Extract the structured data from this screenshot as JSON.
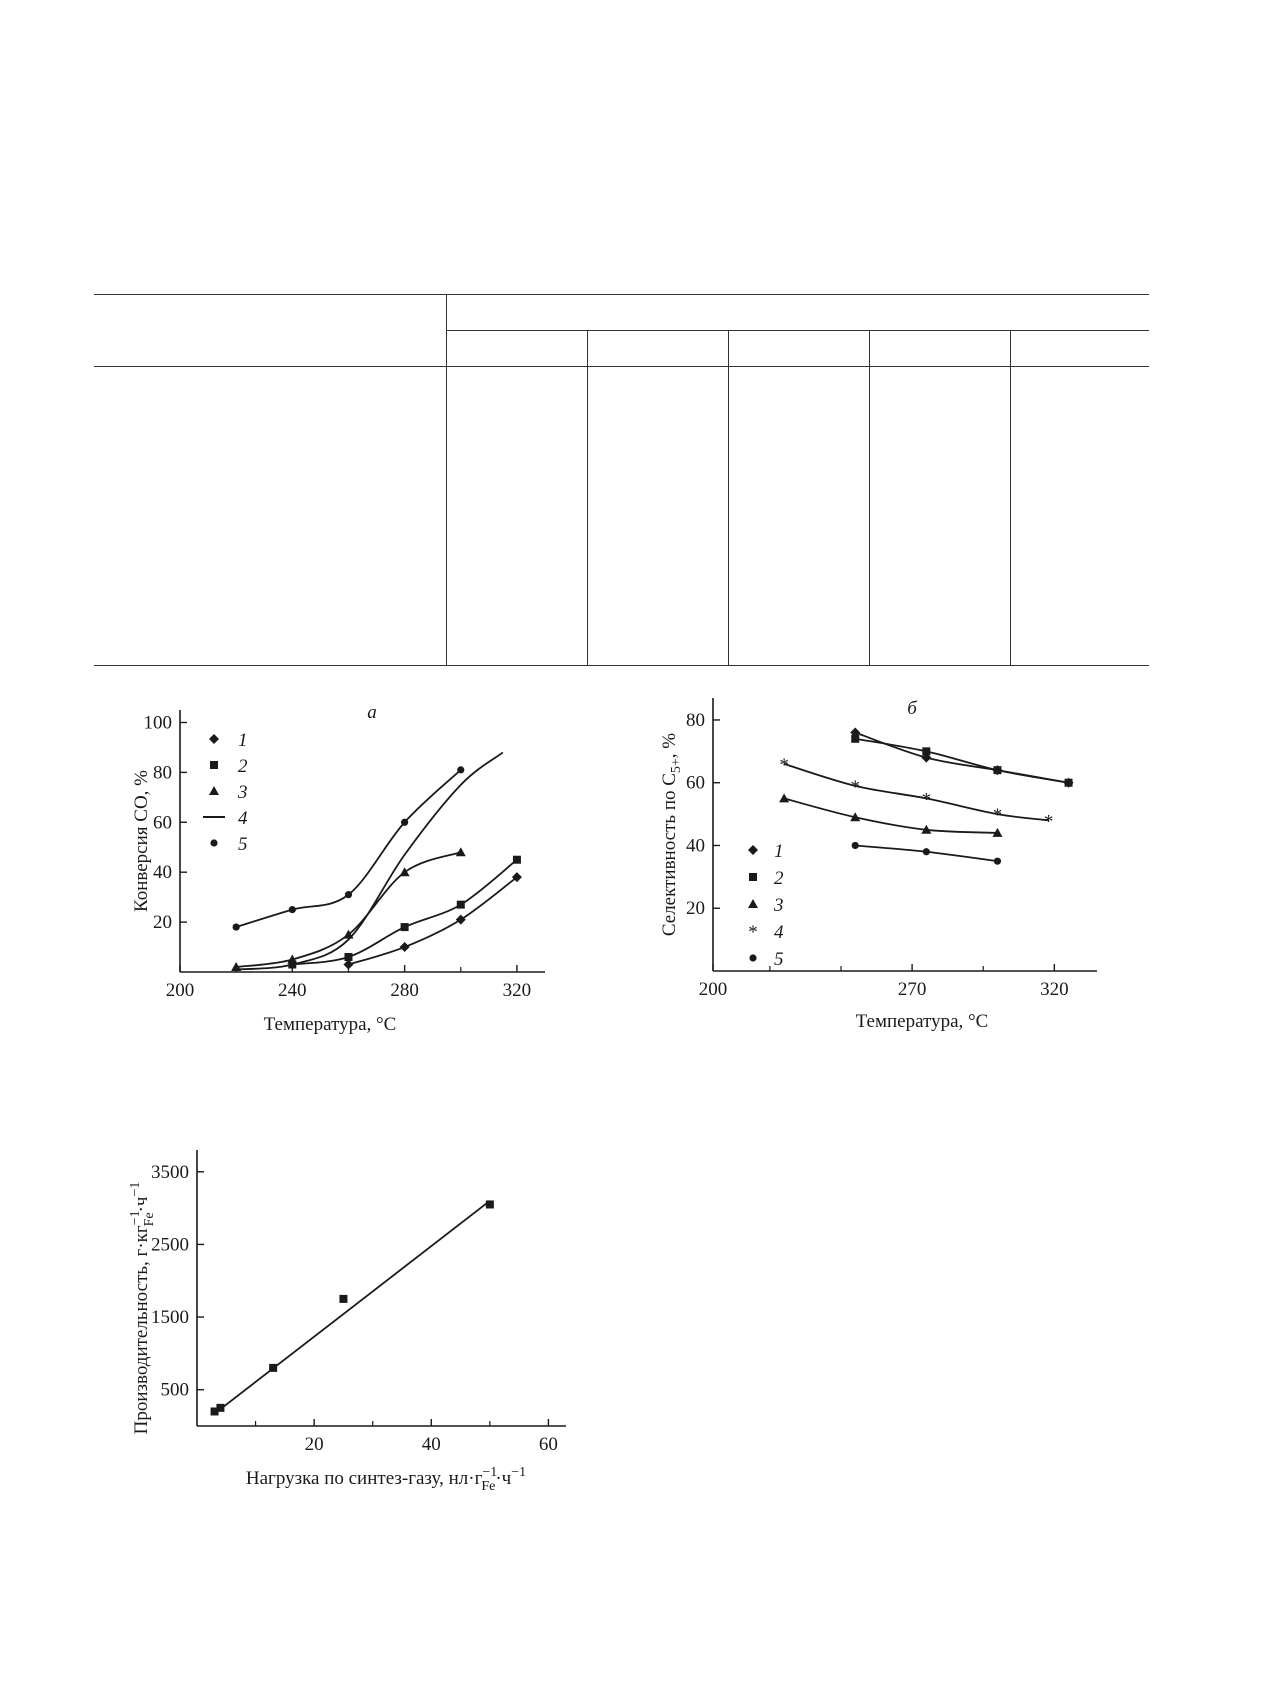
{
  "table": {
    "rows": 2,
    "columns": 6
  },
  "chart_data": [
    {
      "type": "line",
      "panel_label": "а",
      "xlabel": "Температура, °C",
      "ylabel": "Конверсия CO, %",
      "xlim": [
        200,
        330
      ],
      "ylim": [
        0,
        105
      ],
      "xticks": [
        200,
        240,
        280,
        320
      ],
      "yticks": [
        20,
        40,
        60,
        80,
        100
      ],
      "grid": false,
      "legend_position": "top-left",
      "series": [
        {
          "name": "1",
          "marker": "diamond",
          "x": [
            260,
            280,
            300,
            320
          ],
          "y": [
            3,
            10,
            21,
            38
          ]
        },
        {
          "name": "2",
          "marker": "square",
          "x": [
            240,
            260,
            280,
            300,
            320
          ],
          "y": [
            3,
            6,
            18,
            27,
            45
          ]
        },
        {
          "name": "3",
          "marker": "triangle",
          "x": [
            220,
            240,
            260,
            280,
            300
          ],
          "y": [
            2,
            5,
            15,
            40,
            48
          ]
        },
        {
          "name": "4",
          "marker": "dash",
          "x": [
            220,
            240,
            260,
            280,
            300,
            315
          ],
          "y": [
            1,
            3,
            13,
            47,
            75,
            88
          ]
        },
        {
          "name": "5",
          "marker": "circle",
          "x": [
            220,
            240,
            260,
            280,
            300
          ],
          "y": [
            18,
            25,
            31,
            60,
            81
          ]
        }
      ]
    },
    {
      "type": "line",
      "panel_label": "б",
      "xlabel": "Температура, °C",
      "ylabel_prefix": "Селективность по C",
      "ylabel_subscript": "5+",
      "ylabel_suffix": ", %",
      "xlim": [
        200,
        335
      ],
      "ylim": [
        0,
        87
      ],
      "xticks": [
        200,
        270,
        320
      ],
      "yticks": [
        20,
        40,
        60,
        80
      ],
      "grid": false,
      "legend_position": "bottom-left",
      "series": [
        {
          "name": "1",
          "marker": "diamond",
          "x": [
            250,
            275,
            300,
            325
          ],
          "y": [
            76,
            68,
            64,
            60
          ]
        },
        {
          "name": "2",
          "marker": "square",
          "x": [
            250,
            275,
            300,
            325
          ],
          "y": [
            74,
            70,
            64,
            60
          ]
        },
        {
          "name": "3",
          "marker": "triangle",
          "x": [
            225,
            250,
            275,
            300
          ],
          "y": [
            55,
            49,
            45,
            44
          ]
        },
        {
          "name": "4",
          "marker": "star",
          "x": [
            225,
            250,
            275,
            300,
            318
          ],
          "y": [
            66,
            59,
            55,
            50,
            48
          ]
        },
        {
          "name": "5",
          "marker": "circle",
          "x": [
            250,
            275,
            300
          ],
          "y": [
            40,
            38,
            35
          ]
        }
      ]
    },
    {
      "type": "scatter",
      "xlabel_prefix": "Нагрузка по синтез-газу, нл·г",
      "xlabel_sub": "Fe",
      "xlabel_sup": "−1",
      "xlabel_suffix": "·ч",
      "xlabel_suffix_sup": "−1",
      "ylabel_prefix": "Производительность, г·кг",
      "ylabel_sub": "Fe",
      "ylabel_sup": "−1",
      "ylabel_suffix": "·ч",
      "ylabel_suffix_sup": "−1",
      "xlim": [
        0,
        63
      ],
      "ylim": [
        0,
        3800
      ],
      "xticks": [
        20,
        40,
        60
      ],
      "yticks": [
        500,
        1500,
        2500,
        3500
      ],
      "grid": false,
      "points": {
        "x": [
          3,
          4,
          13,
          25,
          50
        ],
        "y": [
          200,
          250,
          800,
          1750,
          3050
        ]
      },
      "fit_line": {
        "x": [
          3,
          50
        ],
        "y": [
          170,
          3100
        ]
      }
    }
  ]
}
